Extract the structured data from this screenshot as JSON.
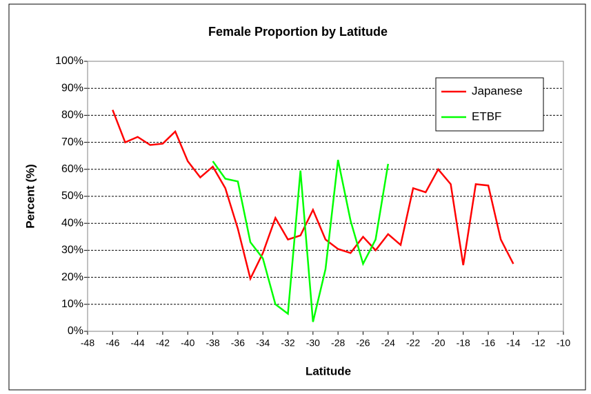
{
  "chart_data": {
    "type": "line",
    "title": "Female Proportion by Latitude",
    "x_label": "Latitude",
    "y_label": "Percent  (%)",
    "xlim": [
      -48,
      -10
    ],
    "xticks": [
      -48,
      -46,
      -44,
      -42,
      -40,
      -38,
      -36,
      -34,
      -32,
      -30,
      -28,
      -26,
      -24,
      -22,
      -20,
      -18,
      -16,
      -14,
      -12,
      -10
    ],
    "ylim": [
      0,
      100
    ],
    "yticks": [
      {
        "value": 0,
        "label": "0%"
      },
      {
        "value": 10,
        "label": "10%"
      },
      {
        "value": 20,
        "label": "20%"
      },
      {
        "value": 30,
        "label": "30%"
      },
      {
        "value": 40,
        "label": "40%"
      },
      {
        "value": 50,
        "label": "50%"
      },
      {
        "value": 60,
        "label": "60%"
      },
      {
        "value": 70,
        "label": "70%"
      },
      {
        "value": 80,
        "label": "80%"
      },
      {
        "value": 90,
        "label": "90%"
      },
      {
        "value": 100,
        "label": "100%"
      }
    ],
    "grid": true,
    "legend": "upper-right",
    "series": [
      {
        "name": "Japanese",
        "color": "#ff0000",
        "x": [
          -46,
          -45,
          -44,
          -43,
          -42,
          -41,
          -40,
          -39,
          -38,
          -37,
          -36,
          -35,
          -34,
          -33,
          -32,
          -31,
          -30,
          -29,
          -28,
          -27,
          -26,
          -25,
          -24,
          -23,
          -22,
          -21,
          -20,
          -19,
          -18,
          -17,
          -16,
          -15,
          -14
        ],
        "values": [
          82,
          70,
          72,
          69,
          69.5,
          74,
          63,
          57,
          61,
          53,
          38,
          19.5,
          29,
          42,
          34,
          35.5,
          45,
          34,
          30.5,
          29,
          35,
          30,
          36,
          32,
          53,
          51.5,
          60,
          54.5,
          24.5,
          54.5,
          54,
          34,
          25
        ]
      },
      {
        "name": "ETBF",
        "color": "#00ff00",
        "x": [
          -38,
          -37,
          -36,
          -35,
          -34,
          -33,
          -32,
          -31,
          -30,
          -29,
          -28,
          -27,
          -26,
          -25,
          -24
        ],
        "values": [
          63,
          56.5,
          55.5,
          33,
          27,
          10,
          6.5,
          59.5,
          3.5,
          23,
          63.5,
          41,
          25,
          34,
          62
        ]
      }
    ]
  }
}
